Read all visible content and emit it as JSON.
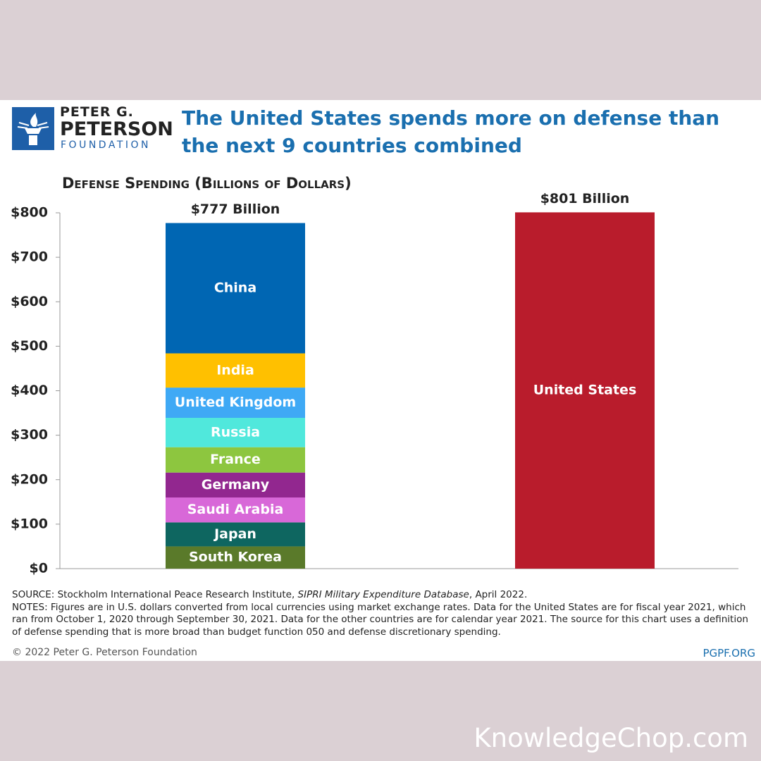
{
  "header": {
    "logo": [
      "PETER G.",
      "PETERSON",
      "FOUNDATION"
    ]
  },
  "chart_data": {
    "type": "stacked_bar",
    "title": "The United States spends more on defense than the next 9 countries combined",
    "y_axis_label": "Defense Spending (Billions of Dollars)",
    "categories": [
      null,
      null
    ],
    "series": [
      {
        "name": "South Korea",
        "color": "#5a7a2a",
        "values": [
          50,
          null
        ]
      },
      {
        "name": "Japan",
        "color": "#0e6660",
        "values": [
          54,
          null
        ]
      },
      {
        "name": "Saudi Arabia",
        "color": "#d868d8",
        "values": [
          56,
          null
        ]
      },
      {
        "name": "Germany",
        "color": "#92278f",
        "values": [
          56,
          null
        ]
      },
      {
        "name": "France",
        "color": "#8dc63f",
        "values": [
          57,
          null
        ]
      },
      {
        "name": "Russia",
        "color": "#50e8dc",
        "values": [
          66,
          null
        ]
      },
      {
        "name": "United Kingdom",
        "color": "#3fa9f5",
        "values": [
          68,
          null
        ]
      },
      {
        "name": "India",
        "color": "#ffc000",
        "values": [
          77,
          null
        ]
      },
      {
        "name": "China",
        "color": "#0066b3",
        "values": [
          293,
          null
        ]
      },
      {
        "name": "United States",
        "color": "#b91c2c",
        "values": [
          null,
          801
        ],
        "value_labels": [
          null,
          "$801 Billion"
        ]
      }
    ],
    "annotations": [
      "$777 Billion"
    ],
    "ylim": [
      0,
      800
    ],
    "yticks": [
      {
        "value": 0,
        "label": "$0"
      },
      {
        "value": 100,
        "label": "$100"
      },
      {
        "value": 200,
        "label": "$200"
      },
      {
        "value": 300,
        "label": "$300"
      },
      {
        "value": 400,
        "label": "$400"
      },
      {
        "value": 500,
        "label": "$500"
      },
      {
        "value": 600,
        "label": "$600"
      },
      {
        "value": 700,
        "label": "$700"
      },
      {
        "value": 800,
        "label": "$800"
      }
    ],
    "grid": false
  },
  "footer": {
    "source": [
      "SOURCE: Stockholm International Peace Research Institute, ",
      "SIPRI Military Expenditure Database",
      ", April 2022."
    ],
    "notes": "NOTES: Figures are in U.S. dollars converted from local currencies using market exchange rates. Data for the United States are for fiscal year 2021, which ran from October 1, 2020 through September 30, 2021. Data for the other countries are for calendar year 2021. The source for this chart uses a definition of defense spending that is more broad than budget function 050 and defense discretionary spending.",
    "copyright": "© 2022 Peter G. Peterson Foundation",
    "site": "PGPF.ORG"
  },
  "watermark": "KnowledgeChop.com"
}
